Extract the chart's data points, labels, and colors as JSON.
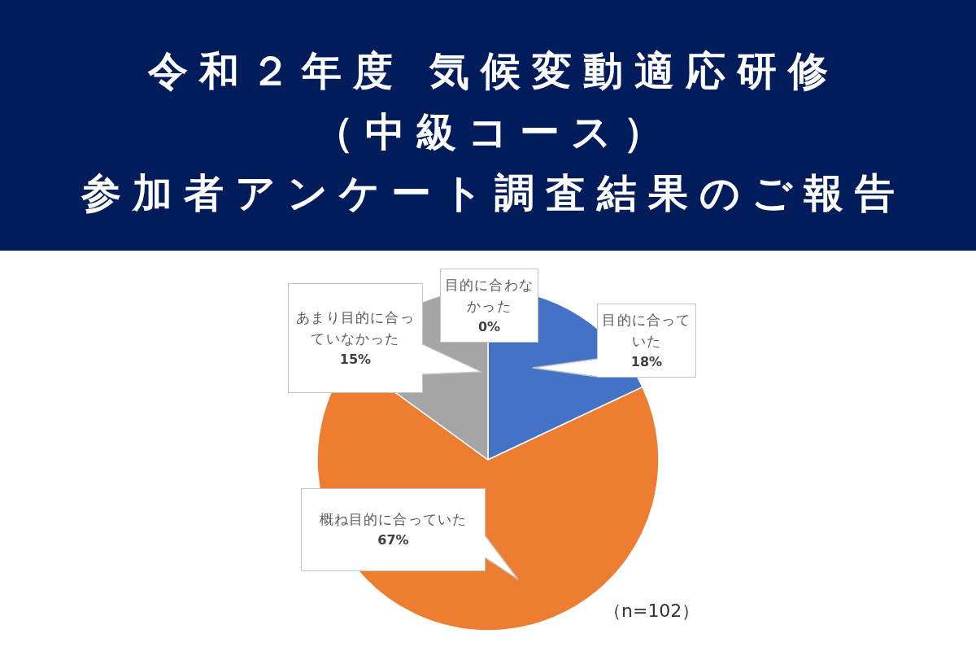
{
  "chart_data": {
    "type": "pie",
    "title": "令和２年度 気候変動適応研修（中級コース）参加者アンケート調査結果のご報告",
    "categories": [
      "目的に合っていた",
      "概ね目的に合っていた",
      "あまり目的に合っていなかった",
      "目的に合わなかった"
    ],
    "values": [
      18,
      67,
      15,
      0
    ],
    "colors": [
      "#4472c4",
      "#ed7d31",
      "#a5a5a5",
      null
    ],
    "value_labels": [
      "18%",
      "67%",
      "15%",
      "0%"
    ],
    "annotations": [
      "（n=102）"
    ]
  }
}
